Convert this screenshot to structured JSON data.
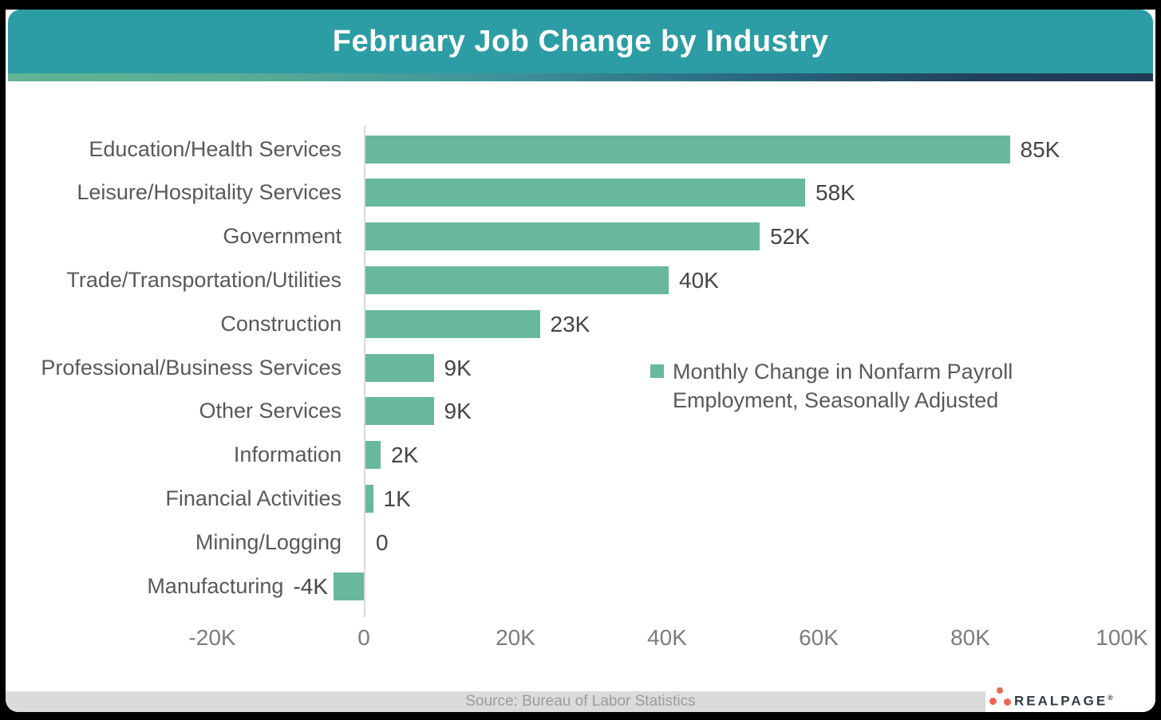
{
  "header": {
    "title": "February Job Change by Industry"
  },
  "colors": {
    "header_bg": "#2C9DA4",
    "bar": "#68B89C",
    "category_text": "#595959",
    "value_text": "#454545",
    "tick_text": "#7C7C7C",
    "axis_line": "#D9D9D9",
    "footer_bg": "#DBDBDB",
    "footer_text": "#9C9C9C",
    "logo_dot": "#E76B52",
    "logo_text_color": "#2E3B44",
    "stripe_left": "#60B394",
    "stripe_right": "#203A55"
  },
  "chart_data": {
    "type": "bar",
    "orientation": "horizontal",
    "title": "February Job Change by Industry",
    "categories": [
      "Education/Health Services",
      "Leisure/Hospitality Services",
      "Government",
      "Trade/Transportation/Utilities",
      "Construction",
      "Professional/Business Services",
      "Other Services",
      "Information",
      "Financial Activities",
      "Mining/Logging",
      "Manufacturing"
    ],
    "values": [
      85000,
      58000,
      52000,
      40000,
      23000,
      9000,
      9000,
      2000,
      1000,
      0,
      -4000
    ],
    "value_labels": [
      "85K",
      "58K",
      "52K",
      "40K",
      "23K",
      "9K",
      "9K",
      "2K",
      "1K",
      "0",
      "-4K"
    ],
    "legend": "Monthly Change in Nonfarm Payroll Employment, Seasonally Adjusted",
    "legend_position": "middle-right",
    "x_ticks": [
      {
        "label": "-20K",
        "value": -20
      },
      {
        "label": "0",
        "value": 0
      },
      {
        "label": "20K",
        "value": 20
      },
      {
        "label": "40K",
        "value": 40
      },
      {
        "label": "60K",
        "value": 60
      },
      {
        "label": "80K",
        "value": 80
      },
      {
        "label": "100K",
        "value": 100
      }
    ],
    "xlim": [
      -20000,
      100000
    ],
    "grid": false
  },
  "footer": {
    "source": "Source: Bureau of Labor Statistics"
  },
  "logo": {
    "text": "REALPAGE",
    "registered_mark": "®"
  }
}
